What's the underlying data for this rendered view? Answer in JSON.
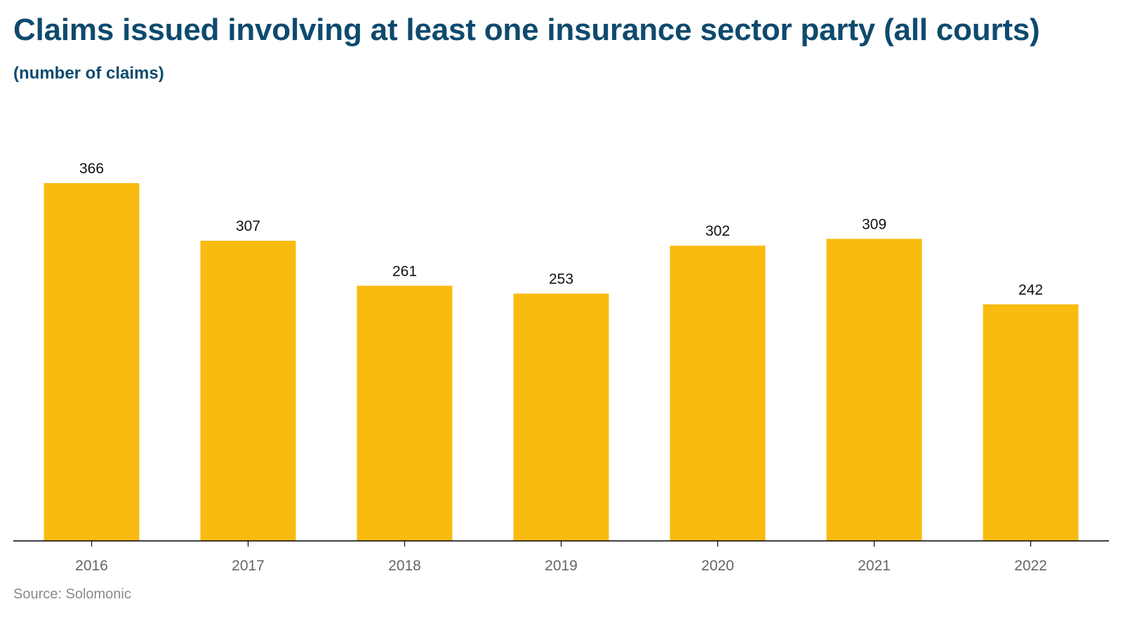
{
  "colors": {
    "title": "#0e4a6e",
    "bar": "#f9bb0f",
    "axis": "#000000",
    "tick_label": "#666666",
    "data_label": "#111111",
    "source": "#8a8a8a"
  },
  "source": "Source: Solomonic",
  "chart_data": {
    "type": "bar",
    "title": "Claims issued involving at least one insurance sector party (all courts)",
    "subtitle": "(number of claims)",
    "categories": [
      "2016",
      "2017",
      "2018",
      "2019",
      "2020",
      "2021",
      "2022"
    ],
    "values": [
      366,
      307,
      261,
      253,
      302,
      309,
      242
    ],
    "data_labels": [
      "366",
      "307",
      "261",
      "253",
      "302",
      "309",
      "242"
    ],
    "ylim": [
      0,
      366
    ],
    "grid": false,
    "legend": "none"
  }
}
